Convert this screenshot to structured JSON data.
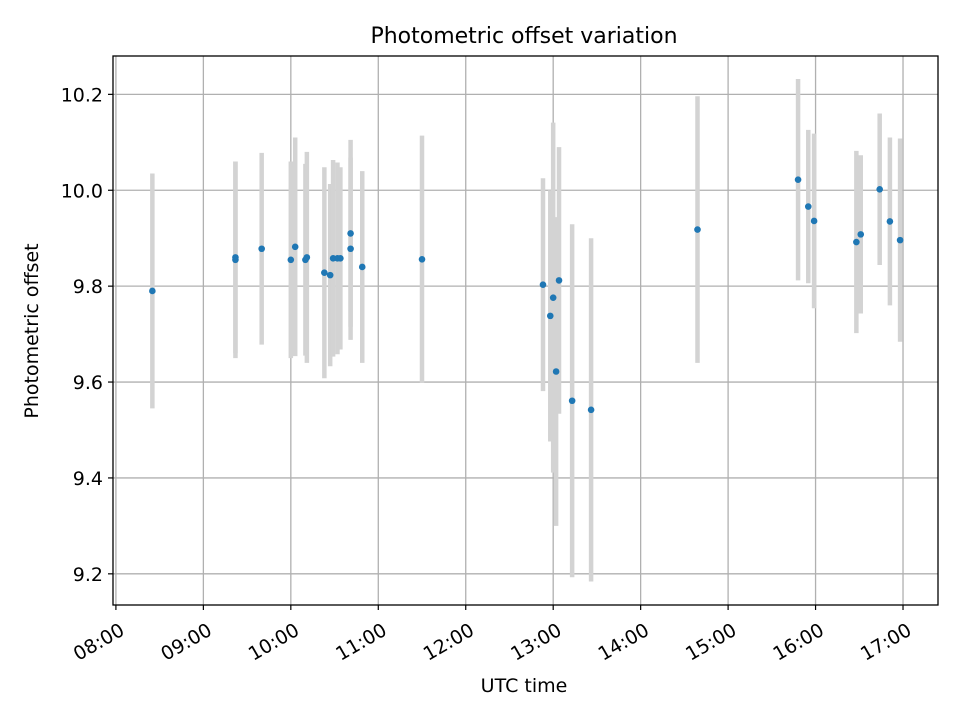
{
  "chart_data": {
    "type": "scatter",
    "title": "Photometric offset variation",
    "xlabel": "UTC time",
    "ylabel": "Photometric offset",
    "x_ticks": [
      "08:00",
      "09:00",
      "10:00",
      "11:00",
      "12:00",
      "13:00",
      "14:00",
      "15:00",
      "16:00",
      "17:00"
    ],
    "y_ticks": [
      "9.2",
      "9.4",
      "9.6",
      "9.8",
      "10.0",
      "10.2"
    ],
    "xlim": [
      "07:58",
      "17:24"
    ],
    "ylim": [
      9.135,
      10.28
    ],
    "grid": true,
    "colors": {
      "marker": "#1f77b4",
      "errorbar": "#d3d3d3",
      "grid": "#b0b0b0"
    },
    "points": [
      {
        "x": "08:25",
        "y": 9.79,
        "yerr": 0.245
      },
      {
        "x": "09:22",
        "y": 9.855,
        "yerr": 0.205
      },
      {
        "x": "09:22",
        "y": 9.86,
        "yerr": 0.2
      },
      {
        "x": "09:40",
        "y": 9.878,
        "yerr": 0.2
      },
      {
        "x": "10:00",
        "y": 9.855,
        "yerr": 0.205
      },
      {
        "x": "10:03",
        "y": 9.882,
        "yerr": 0.228
      },
      {
        "x": "10:10",
        "y": 9.855,
        "yerr": 0.2
      },
      {
        "x": "10:11",
        "y": 9.86,
        "yerr": 0.22
      },
      {
        "x": "10:23",
        "y": 9.828,
        "yerr": 0.22
      },
      {
        "x": "10:27",
        "y": 9.823,
        "yerr": 0.19
      },
      {
        "x": "10:29",
        "y": 9.858,
        "yerr": 0.205
      },
      {
        "x": "10:32",
        "y": 9.858,
        "yerr": 0.2
      },
      {
        "x": "10:34",
        "y": 9.858,
        "yerr": 0.19
      },
      {
        "x": "10:41",
        "y": 9.91,
        "yerr": 0.195
      },
      {
        "x": "10:41",
        "y": 9.878,
        "yerr": 0.19
      },
      {
        "x": "10:49",
        "y": 9.84,
        "yerr": 0.2
      },
      {
        "x": "11:30",
        "y": 9.856,
        "yerr": 0.258
      },
      {
        "x": "12:53",
        "y": 9.803,
        "yerr": 0.222
      },
      {
        "x": "12:58",
        "y": 9.738,
        "yerr": 0.262
      },
      {
        "x": "13:00",
        "y": 9.776,
        "yerr": 0.365
      },
      {
        "x": "13:02",
        "y": 9.622,
        "yerr": 0.322
      },
      {
        "x": "13:04",
        "y": 9.812,
        "yerr": 0.278
      },
      {
        "x": "13:13",
        "y": 9.561,
        "yerr": 0.368
      },
      {
        "x": "13:26",
        "y": 9.542,
        "yerr": 0.358
      },
      {
        "x": "14:39",
        "y": 9.918,
        "yerr": 0.278
      },
      {
        "x": "15:48",
        "y": 10.022,
        "yerr": 0.21
      },
      {
        "x": "15:55",
        "y": 9.966,
        "yerr": 0.16
      },
      {
        "x": "15:59",
        "y": 9.936,
        "yerr": 0.182
      },
      {
        "x": "16:28",
        "y": 9.892,
        "yerr": 0.19
      },
      {
        "x": "16:31",
        "y": 9.908,
        "yerr": 0.165
      },
      {
        "x": "16:44",
        "y": 10.002,
        "yerr": 0.158
      },
      {
        "x": "16:51",
        "y": 9.935,
        "yerr": 0.175
      },
      {
        "x": "16:58",
        "y": 9.896,
        "yerr": 0.212
      }
    ]
  }
}
